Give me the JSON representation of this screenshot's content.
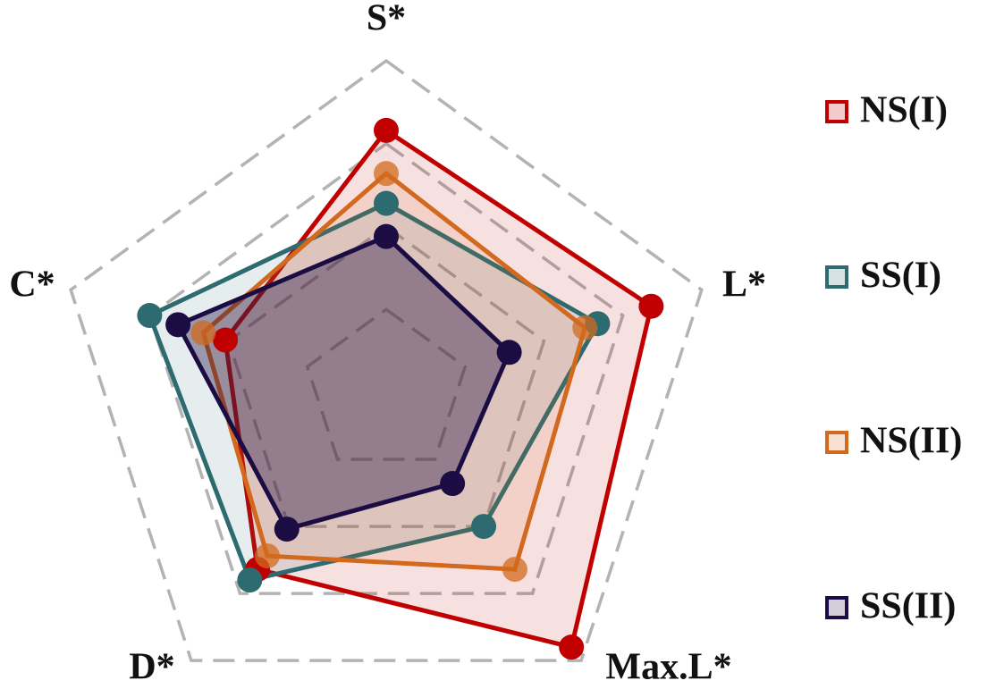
{
  "chart_data": {
    "type": "radar",
    "categories": [
      "S*",
      "L*",
      "Max.L*",
      "D*",
      "C*"
    ],
    "ylim": [
      0,
      100
    ],
    "yticks": [
      25,
      50,
      75,
      100
    ],
    "grid": true,
    "legend": "right",
    "series": [
      {
        "name": "NS(I)",
        "color": "#c00000",
        "values": [
          79,
          84,
          95,
          66,
          51
        ]
      },
      {
        "name": "SS(I)",
        "color": "#2e6b70",
        "values": [
          57,
          67,
          50,
          70,
          75
        ]
      },
      {
        "name": "NS(II)",
        "color": "#d2691e",
        "values": [
          66,
          63,
          66,
          61,
          58
        ]
      },
      {
        "name": "SS(II)",
        "color": "#1c0c44",
        "values": [
          47,
          39,
          34,
          51,
          66
        ]
      }
    ]
  }
}
